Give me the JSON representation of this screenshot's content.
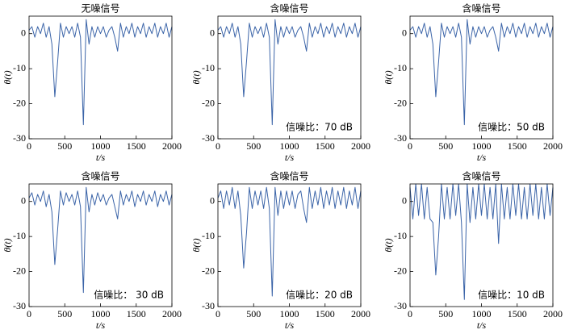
{
  "chart_data": [
    {
      "type": "line",
      "title": "无噪信号",
      "xlabel": "t/s",
      "ylabel": "θ(t)",
      "color": "#3b64a8",
      "x": [
        0,
        40,
        80,
        120,
        160,
        200,
        240,
        280,
        320,
        360,
        400,
        440,
        480,
        520,
        560,
        600,
        640,
        680,
        720,
        760,
        800,
        840,
        880,
        920,
        960,
        1000,
        1040,
        1080,
        1120,
        1160,
        1200,
        1240,
        1280,
        1320,
        1360,
        1400,
        1440,
        1480,
        1520,
        1560,
        1600,
        1640,
        1680,
        1720,
        1760,
        1800,
        1840,
        1880,
        1920,
        1960,
        2000
      ],
      "values": [
        1,
        2,
        -1,
        2,
        0,
        3,
        -1,
        2,
        -3,
        -18,
        -8,
        3,
        -1,
        2,
        0,
        2,
        -1,
        3,
        -1,
        -26,
        4,
        -3,
        2,
        -1,
        2,
        0,
        2,
        -1,
        1,
        2,
        -1,
        -5,
        3,
        -1,
        2,
        0,
        3,
        -1,
        2,
        0,
        3,
        -1,
        2,
        0,
        3,
        -1,
        2,
        0,
        3,
        -1,
        2
      ],
      "xlim": [
        0,
        2000
      ],
      "ylim": [
        -30,
        5
      ],
      "xticks": [
        0,
        500,
        1000,
        1500,
        2000
      ],
      "yticks": [
        -30,
        -20,
        -10,
        0
      ]
    },
    {
      "type": "line",
      "title": "含噪信号",
      "xlabel": "t/s",
      "ylabel": "θ(t)",
      "color": "#3b64a8",
      "annotation": "信噪比：70 dB",
      "x": [
        0,
        40,
        80,
        120,
        160,
        200,
        240,
        280,
        320,
        360,
        400,
        440,
        480,
        520,
        560,
        600,
        640,
        680,
        720,
        760,
        800,
        840,
        880,
        920,
        960,
        1000,
        1040,
        1080,
        1120,
        1160,
        1200,
        1240,
        1280,
        1320,
        1360,
        1400,
        1440,
        1480,
        1520,
        1560,
        1600,
        1640,
        1680,
        1720,
        1760,
        1800,
        1840,
        1880,
        1920,
        1960,
        2000
      ],
      "values": [
        1,
        2,
        -1,
        2,
        0,
        3,
        -1,
        2,
        -3,
        -18,
        -8,
        3,
        -1,
        2,
        0,
        2,
        -1,
        3,
        -1,
        -26,
        4,
        -3,
        2,
        -1,
        2,
        0,
        2,
        -1,
        1,
        2,
        -1,
        -5,
        3,
        -1,
        2,
        0,
        3,
        -1,
        2,
        0,
        3,
        -1,
        2,
        0,
        3,
        -1,
        2,
        0,
        3,
        -1,
        2
      ],
      "xlim": [
        0,
        2000
      ],
      "ylim": [
        -30,
        5
      ],
      "xticks": [
        0,
        500,
        1000,
        1500,
        2000
      ],
      "yticks": [
        -30,
        -20,
        -10,
        0
      ]
    },
    {
      "type": "line",
      "title": "含噪信号",
      "xlabel": "t/s",
      "ylabel": "θ(t)",
      "color": "#3b64a8",
      "annotation": "信噪比：50 dB",
      "x": [
        0,
        40,
        80,
        120,
        160,
        200,
        240,
        280,
        320,
        360,
        400,
        440,
        480,
        520,
        560,
        600,
        640,
        680,
        720,
        760,
        800,
        840,
        880,
        920,
        960,
        1000,
        1040,
        1080,
        1120,
        1160,
        1200,
        1240,
        1280,
        1320,
        1360,
        1400,
        1440,
        1480,
        1520,
        1560,
        1600,
        1640,
        1680,
        1720,
        1760,
        1800,
        1840,
        1880,
        1920,
        1960,
        2000
      ],
      "values": [
        1,
        2,
        -1,
        2,
        0,
        3,
        -1,
        2,
        -3,
        -18,
        -8,
        3,
        -1,
        2,
        0,
        2,
        -1,
        3,
        -1,
        -26,
        4,
        -3,
        2,
        -1,
        2,
        0,
        2,
        -1,
        1,
        2,
        -1,
        -5,
        3,
        -1,
        2,
        0,
        3,
        -1,
        2,
        0,
        3,
        -1,
        2,
        0,
        3,
        -1,
        2,
        0,
        3,
        -1,
        2
      ],
      "xlim": [
        0,
        2000
      ],
      "ylim": [
        -30,
        5
      ],
      "xticks": [
        0,
        500,
        1000,
        1500,
        2000
      ],
      "yticks": [
        -30,
        -20,
        -10,
        0
      ]
    },
    {
      "type": "line",
      "title": "含噪信号",
      "xlabel": "t/s",
      "ylabel": "θ(t)",
      "color": "#3b64a8",
      "annotation": "信噪比：  30 dB",
      "x": [
        0,
        40,
        80,
        120,
        160,
        200,
        240,
        280,
        320,
        360,
        400,
        440,
        480,
        520,
        560,
        600,
        640,
        680,
        720,
        760,
        800,
        840,
        880,
        920,
        960,
        1000,
        1040,
        1080,
        1120,
        1160,
        1200,
        1240,
        1280,
        1320,
        1360,
        1400,
        1440,
        1480,
        1520,
        1560,
        1600,
        1640,
        1680,
        1720,
        1760,
        1800,
        1840,
        1880,
        1920,
        1960,
        2000
      ],
      "values": [
        1,
        2.5,
        -1,
        2,
        0,
        3,
        -1.5,
        2,
        -3,
        -18,
        -8,
        3,
        -1,
        2.5,
        0,
        2,
        -1,
        3,
        -1.5,
        -26,
        4,
        -3,
        2,
        -1,
        2.5,
        0,
        2,
        -1,
        1,
        2,
        -1.5,
        -5,
        3,
        -1,
        2,
        0,
        3,
        -1.5,
        2,
        0,
        3,
        -1,
        2,
        0,
        3,
        -1.5,
        2,
        0,
        3,
        -1,
        2
      ],
      "xlim": [
        0,
        2000
      ],
      "ylim": [
        -30,
        5
      ],
      "xticks": [
        0,
        500,
        1000,
        1500,
        2000
      ],
      "yticks": [
        -30,
        -20,
        -10,
        0
      ]
    },
    {
      "type": "line",
      "title": "含噪信号",
      "xlabel": "t/s",
      "ylabel": "θ(t)",
      "color": "#3b64a8",
      "annotation": "信噪比：20 dB",
      "x": [
        0,
        40,
        80,
        120,
        160,
        200,
        240,
        280,
        320,
        360,
        400,
        440,
        480,
        520,
        560,
        600,
        640,
        680,
        720,
        760,
        800,
        840,
        880,
        920,
        960,
        1000,
        1040,
        1080,
        1120,
        1160,
        1200,
        1240,
        1280,
        1320,
        1360,
        1400,
        1440,
        1480,
        1520,
        1560,
        1600,
        1640,
        1680,
        1720,
        1760,
        1800,
        1840,
        1880,
        1920,
        1960,
        2000
      ],
      "values": [
        1,
        3,
        -2,
        3,
        -1,
        4,
        -2,
        3,
        -4,
        -19,
        -9,
        4,
        -2,
        3,
        -1,
        3,
        -2,
        4,
        -2,
        -27,
        4,
        -4,
        3,
        -2,
        3,
        -1,
        3,
        -2,
        2,
        3,
        -2,
        -6,
        4,
        -2,
        3,
        -1,
        4,
        -2,
        3,
        -1,
        4,
        -2,
        3,
        -1,
        4,
        -2,
        3,
        -1,
        4,
        -2,
        3
      ],
      "xlim": [
        0,
        2000
      ],
      "ylim": [
        -30,
        5
      ],
      "xticks": [
        0,
        500,
        1000,
        1500,
        2000
      ],
      "yticks": [
        -30,
        -20,
        -10,
        0
      ]
    },
    {
      "type": "line",
      "title": "含噪信号",
      "xlabel": "t/s",
      "ylabel": "θ(t)",
      "color": "#3b64a8",
      "annotation": "信噪比：10 dB",
      "x": [
        0,
        40,
        80,
        120,
        160,
        200,
        240,
        280,
        320,
        360,
        400,
        440,
        480,
        520,
        560,
        600,
        640,
        680,
        720,
        760,
        800,
        840,
        880,
        920,
        960,
        1000,
        1040,
        1080,
        1120,
        1160,
        1200,
        1240,
        1280,
        1320,
        1360,
        1400,
        1440,
        1480,
        1520,
        1560,
        1600,
        1640,
        1680,
        1720,
        1760,
        1800,
        1840,
        1880,
        1920,
        1960,
        2000
      ],
      "values": [
        4,
        -5,
        5,
        -4,
        5,
        -5,
        4,
        -5,
        -6,
        -21,
        -10,
        5,
        -5,
        4,
        -5,
        5,
        -4,
        5,
        -6,
        -28,
        5,
        -6,
        4,
        -5,
        5,
        -4,
        5,
        -5,
        4,
        -5,
        5,
        -12,
        5,
        -5,
        4,
        -5,
        5,
        -4,
        5,
        -5,
        4,
        -5,
        5,
        -4,
        5,
        -5,
        4,
        -5,
        5,
        -4,
        4
      ],
      "xlim": [
        0,
        2000
      ],
      "ylim": [
        -30,
        5
      ],
      "xticks": [
        0,
        500,
        1000,
        1500,
        2000
      ],
      "yticks": [
        -30,
        -20,
        -10,
        0
      ]
    }
  ]
}
